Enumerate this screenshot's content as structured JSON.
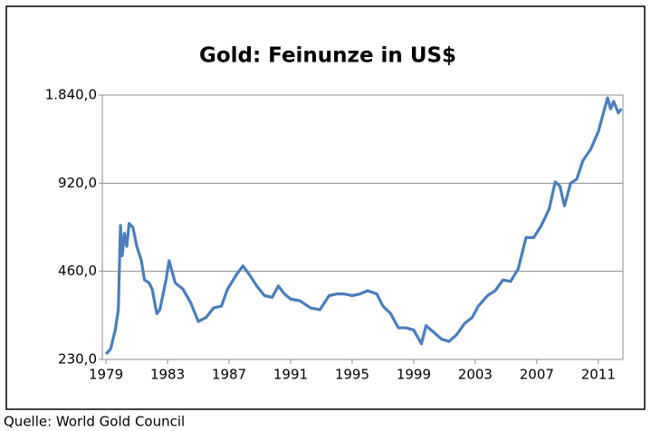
{
  "chart_data": {
    "type": "line",
    "title": "Gold: Feinunze in US$",
    "source": "Quelle: World Gold Council",
    "yscale": "log",
    "grid": true,
    "xlim": [
      1978.76,
      2012.6
    ],
    "xticks": [
      1979,
      1983,
      1987,
      1991,
      1995,
      1999,
      2003,
      2007,
      2011
    ],
    "ylim": [
      230,
      1840
    ],
    "yticks": [
      {
        "value": 230,
        "label": "230,0"
      },
      {
        "value": 460,
        "label": "460,0"
      },
      {
        "value": 920,
        "label": "920,0"
      },
      {
        "value": 1840,
        "label": "1.840,0"
      }
    ],
    "series": [
      {
        "name": "Gold",
        "color": "#4a7ebb",
        "x": [
          1979.0,
          1979.3,
          1979.6,
          1979.8,
          1979.94,
          1980.05,
          1980.2,
          1980.35,
          1980.5,
          1980.75,
          1981.0,
          1981.3,
          1981.5,
          1981.8,
          1982.0,
          1982.3,
          1982.5,
          1982.9,
          1983.1,
          1983.5,
          1984.0,
          1984.5,
          1985.0,
          1985.5,
          1986.0,
          1986.5,
          1986.9,
          1987.5,
          1987.9,
          1988.3,
          1988.8,
          1989.3,
          1989.8,
          1990.2,
          1990.6,
          1991.0,
          1991.6,
          1992.3,
          1992.9,
          1993.5,
          1994.0,
          1994.5,
          1995.0,
          1995.5,
          1996.0,
          1996.6,
          1997.0,
          1997.5,
          1998.0,
          1998.5,
          1999.0,
          1999.5,
          1999.8,
          2000.3,
          2000.8,
          2001.3,
          2001.8,
          2002.3,
          2002.8,
          2003.2,
          2003.8,
          2004.3,
          2004.8,
          2005.3,
          2005.8,
          2006.3,
          2006.8,
          2007.3,
          2007.8,
          2008.2,
          2008.5,
          2008.8,
          2009.2,
          2009.6,
          2010.0,
          2010.5,
          2011.0,
          2011.6,
          2011.8,
          2012.0,
          2012.3,
          2012.5
        ],
        "values": [
          240,
          250,
          290,
          340,
          660,
          520,
          620,
          560,
          670,
          650,
          560,
          500,
          430,
          420,
          400,
          330,
          340,
          430,
          500,
          420,
          400,
          360,
          310,
          320,
          345,
          350,
          400,
          450,
          480,
          450,
          410,
          380,
          375,
          410,
          385,
          370,
          365,
          345,
          340,
          380,
          385,
          385,
          380,
          385,
          395,
          385,
          350,
          330,
          295,
          295,
          290,
          260,
          300,
          285,
          270,
          265,
          280,
          305,
          320,
          350,
          380,
          395,
          430,
          425,
          470,
          600,
          600,
          660,
          750,
          930,
          900,
          770,
          920,
          950,
          1100,
          1200,
          1380,
          1800,
          1650,
          1750,
          1600,
          1650
        ]
      }
    ]
  }
}
